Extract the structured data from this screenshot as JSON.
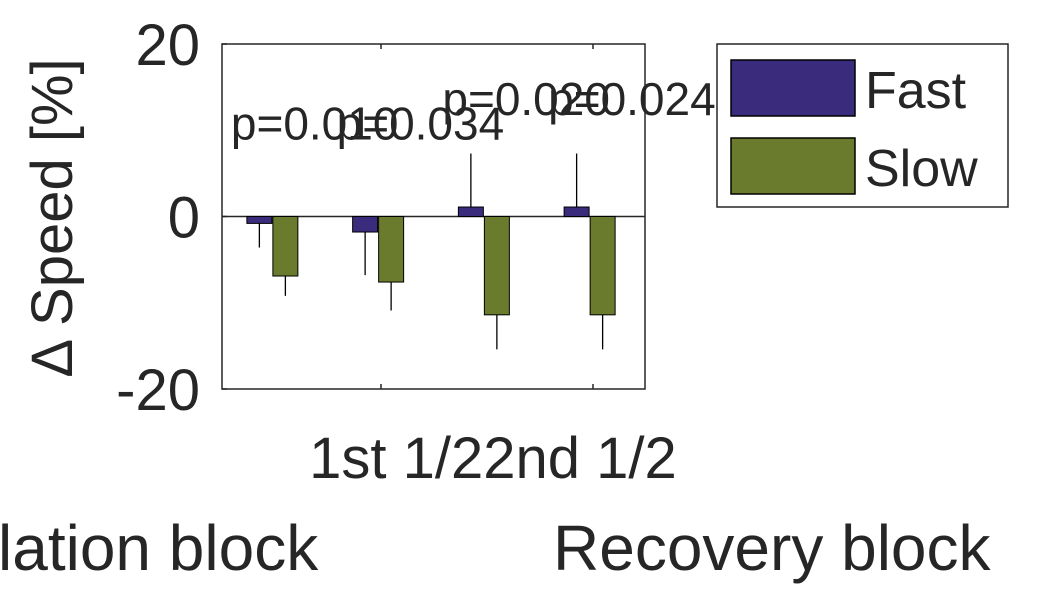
{
  "chart_data": {
    "type": "bar",
    "ylabel": "Δ Speed [%]",
    "ylim": [
      -20,
      20
    ],
    "yticks": [
      -20,
      0,
      20
    ],
    "xtick_label": "1st 1/22nd 1/2",
    "block_labels": [
      "lation block",
      "Recovery block"
    ],
    "categories": [
      "1",
      "2",
      "3",
      "4"
    ],
    "series": [
      {
        "name": "Fast",
        "color": "#3b2b7d",
        "values": [
          -0.8,
          -1.8,
          1.1,
          1.1
        ],
        "errors": [
          2.8,
          5.0,
          6.2,
          6.2
        ]
      },
      {
        "name": "Slow",
        "color": "#6b7b2d",
        "values": [
          -6.9,
          -7.6,
          -11.4,
          -11.4
        ],
        "errors": [
          2.3,
          3.3,
          4.0,
          4.0
        ]
      }
    ],
    "annotations": [
      {
        "text": "p=0.010",
        "x": 1,
        "y": 11.5
      },
      {
        "text": "p=0.034",
        "x": 2,
        "y": 11.5
      },
      {
        "text": "p=0.020",
        "x": 3,
        "y": 14.3
      },
      {
        "text": "p=0.024",
        "x": 4,
        "y": 14.3
      }
    ],
    "legend_position": "top-right",
    "grid": false
  }
}
